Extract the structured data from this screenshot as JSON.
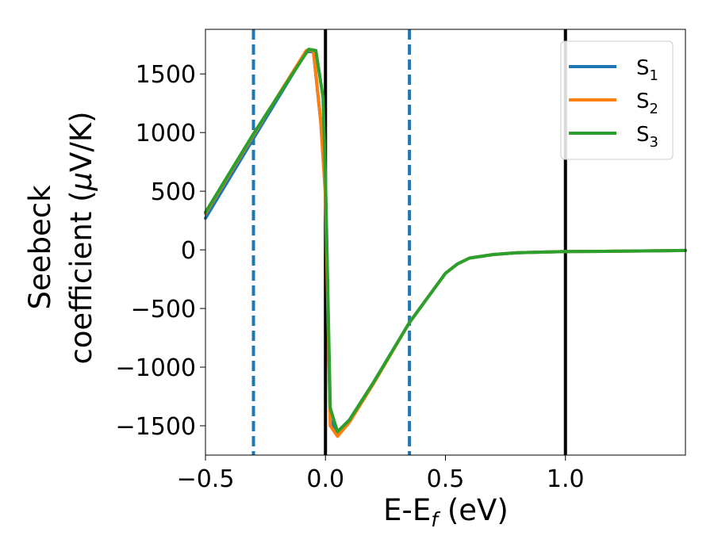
{
  "chart_data": {
    "type": "line",
    "xlabel": {
      "main": "E-E",
      "sub": "f",
      "tail": " (eV)"
    },
    "ylabel": {
      "line1": "Seebeck",
      "line2a": "coefficient  (",
      "mu": "μ",
      "line2b": "V/K)"
    },
    "xlim": [
      -0.5,
      1.5
    ],
    "ylim": [
      -1750,
      1880
    ],
    "xticks": [
      -0.5,
      0.0,
      0.5,
      1.0
    ],
    "xtick_labels": [
      "−0.5",
      "0.0",
      "0.5",
      "1.0"
    ],
    "yticks": [
      -1500,
      -1000,
      -500,
      0,
      500,
      1000,
      1500
    ],
    "ytick_labels": [
      "−1500",
      "−1000",
      "−500",
      "0",
      "500",
      "1000",
      "1500"
    ],
    "grid": false,
    "legend_position": "top-right",
    "vertical_lines": [
      {
        "x": -0.3,
        "style": "dashed",
        "color": "#1f77b4"
      },
      {
        "x": 0.35,
        "style": "dashed",
        "color": "#1f77b4"
      },
      {
        "x": 0.0,
        "style": "solid",
        "color": "#000000"
      },
      {
        "x": 1.0,
        "style": "solid",
        "color": "#000000"
      }
    ],
    "series": [
      {
        "name": "S",
        "sub": "1",
        "color": "#1f77b4",
        "x": [
          -0.5,
          -0.3,
          -0.08,
          -0.05,
          -0.02,
          0.0,
          0.02,
          0.05,
          0.1,
          0.2,
          0.35,
          0.5,
          0.55,
          0.6,
          0.7,
          0.8,
          1.0,
          1.2,
          1.4,
          1.5
        ],
        "y": [
          270,
          950,
          1690,
          1690,
          1100,
          500,
          -1450,
          -1560,
          -1450,
          -1130,
          -620,
          -200,
          -120,
          -70,
          -40,
          -25,
          -15,
          -12,
          -8,
          -5
        ]
      },
      {
        "name": "S",
        "sub": "2",
        "color": "#ff7f0e",
        "x": [
          -0.5,
          -0.3,
          -0.08,
          -0.05,
          -0.02,
          0.0,
          0.02,
          0.05,
          0.1,
          0.2,
          0.35,
          0.5,
          0.55,
          0.6,
          0.7,
          0.8,
          1.0,
          1.2,
          1.4,
          1.5
        ],
        "y": [
          310,
          980,
          1700,
          1700,
          1100,
          450,
          -1500,
          -1590,
          -1470,
          -1140,
          -620,
          -200,
          -120,
          -70,
          -40,
          -25,
          -15,
          -12,
          -8,
          -5
        ]
      },
      {
        "name": "S",
        "sub": "3",
        "color": "#2ca02c",
        "x": [
          -0.5,
          -0.3,
          -0.07,
          -0.04,
          -0.01,
          0.0,
          0.02,
          0.05,
          0.1,
          0.2,
          0.35,
          0.5,
          0.55,
          0.6,
          0.7,
          0.8,
          1.0,
          1.2,
          1.4,
          1.5
        ],
        "y": [
          320,
          990,
          1710,
          1700,
          1300,
          600,
          -1350,
          -1550,
          -1450,
          -1130,
          -620,
          -200,
          -120,
          -70,
          -40,
          -25,
          -15,
          -12,
          -8,
          -5
        ]
      }
    ]
  }
}
